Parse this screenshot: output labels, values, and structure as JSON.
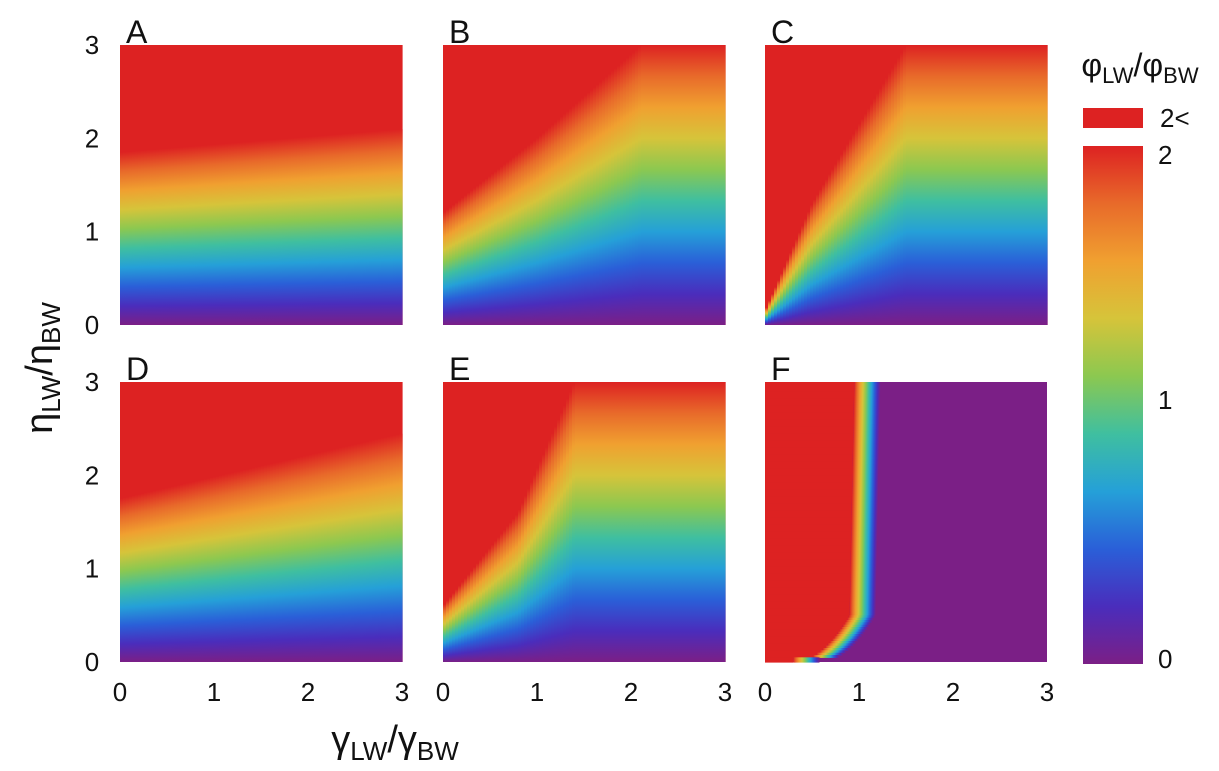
{
  "chart_data": {
    "type": "heatmap",
    "xlabel": {
      "main": "γ",
      "sub": "LW",
      "sep": "/",
      "main2": "γ",
      "sub2": "BW"
    },
    "ylabel": {
      "main": "η",
      "sub": "LW",
      "sep": "/",
      "main2": "η",
      "sub2": "BW"
    },
    "xlim": [
      0,
      3
    ],
    "ylim": [
      0,
      3
    ],
    "x_ticks": [
      "0",
      "1",
      "2",
      "3"
    ],
    "y_ticks": [
      "0",
      "1",
      "2",
      "3"
    ],
    "grid": false,
    "colorbar": {
      "title": {
        "main": "φ",
        "sub": "LW",
        "sep": "/",
        "main2": "φ",
        "sub2": "BW"
      },
      "range": [
        0,
        2
      ],
      "ticks": [
        "0",
        "1",
        "2"
      ],
      "overflow_label": "2<",
      "overflow_color": "#dd2222",
      "palette": [
        "#7b1f86",
        "#4a2dbc",
        "#2a5fd8",
        "#25a0d8",
        "#3fbfa0",
        "#8cc850",
        "#d6c43a",
        "#f0a030",
        "#e86a2a",
        "#dd2222"
      ]
    },
    "panels": [
      {
        "label": "A",
        "boundary_eta_at_ratio2": [
          [
            0,
            1.85
          ],
          [
            3,
            2.1
          ]
        ]
      },
      {
        "label": "B",
        "boundary_eta_at_ratio2": [
          [
            0,
            1.2
          ],
          [
            1,
            2.0
          ],
          [
            2,
            2.9
          ]
        ]
      },
      {
        "label": "C",
        "boundary_eta_at_ratio2": [
          [
            0,
            0.15
          ],
          [
            0.5,
            1.3
          ],
          [
            1.5,
            3.0
          ]
        ]
      },
      {
        "label": "D",
        "boundary_eta_at_ratio2": [
          [
            0,
            1.75
          ],
          [
            3,
            2.45
          ]
        ]
      },
      {
        "label": "E",
        "boundary_eta_at_ratio2": [
          [
            0,
            0.6
          ],
          [
            0.8,
            1.6
          ],
          [
            1.4,
            3.0
          ]
        ]
      },
      {
        "label": "F",
        "boundary_gamma_at_ratio2": [
          [
            0.9,
            0.5
          ],
          [
            0.95,
            3.0
          ]
        ]
      }
    ]
  }
}
